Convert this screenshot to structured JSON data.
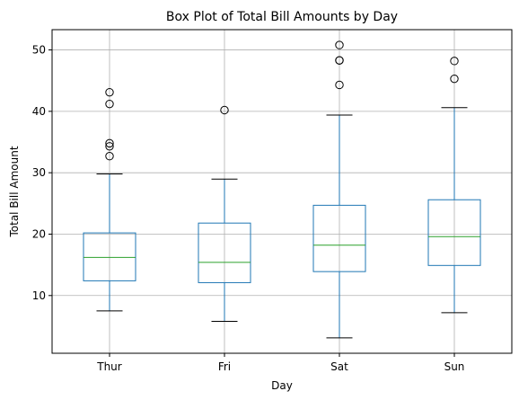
{
  "chart_data": {
    "type": "box",
    "title": "Box Plot of Total Bill Amounts by Day",
    "xlabel": "Day",
    "ylabel": "Total Bill Amount",
    "categories": [
      "Thur",
      "Fri",
      "Sat",
      "Sun"
    ],
    "ylim": [
      0.6,
      53.3
    ],
    "yticks": [
      10,
      20,
      30,
      40,
      50
    ],
    "grid": true,
    "boxes": [
      {
        "category": "Thur",
        "whisker_low": 7.5,
        "q1": 12.4,
        "median": 16.2,
        "q3": 20.2,
        "whisker_high": 29.8,
        "outliers": [
          32.7,
          34.3,
          34.8,
          41.2,
          43.1
        ]
      },
      {
        "category": "Fri",
        "whisker_low": 5.8,
        "q1": 12.1,
        "median": 15.4,
        "q3": 21.8,
        "whisker_high": 28.97,
        "outliers": [
          40.2
        ]
      },
      {
        "category": "Sat",
        "whisker_low": 3.1,
        "q1": 13.9,
        "median": 18.2,
        "q3": 24.7,
        "whisker_high": 39.4,
        "outliers": [
          44.3,
          48.3,
          48.3,
          50.8
        ]
      },
      {
        "category": "Sun",
        "whisker_low": 7.2,
        "q1": 14.9,
        "median": 19.6,
        "q3": 25.6,
        "whisker_high": 40.6,
        "outliers": [
          45.3,
          48.2
        ]
      }
    ],
    "colors": {
      "box": "#1f77b4",
      "median": "#2ca02c",
      "whisker": "#1f77b4",
      "cap": "#000000",
      "outlier": "#000000",
      "grid": "#b0b0b0"
    }
  }
}
